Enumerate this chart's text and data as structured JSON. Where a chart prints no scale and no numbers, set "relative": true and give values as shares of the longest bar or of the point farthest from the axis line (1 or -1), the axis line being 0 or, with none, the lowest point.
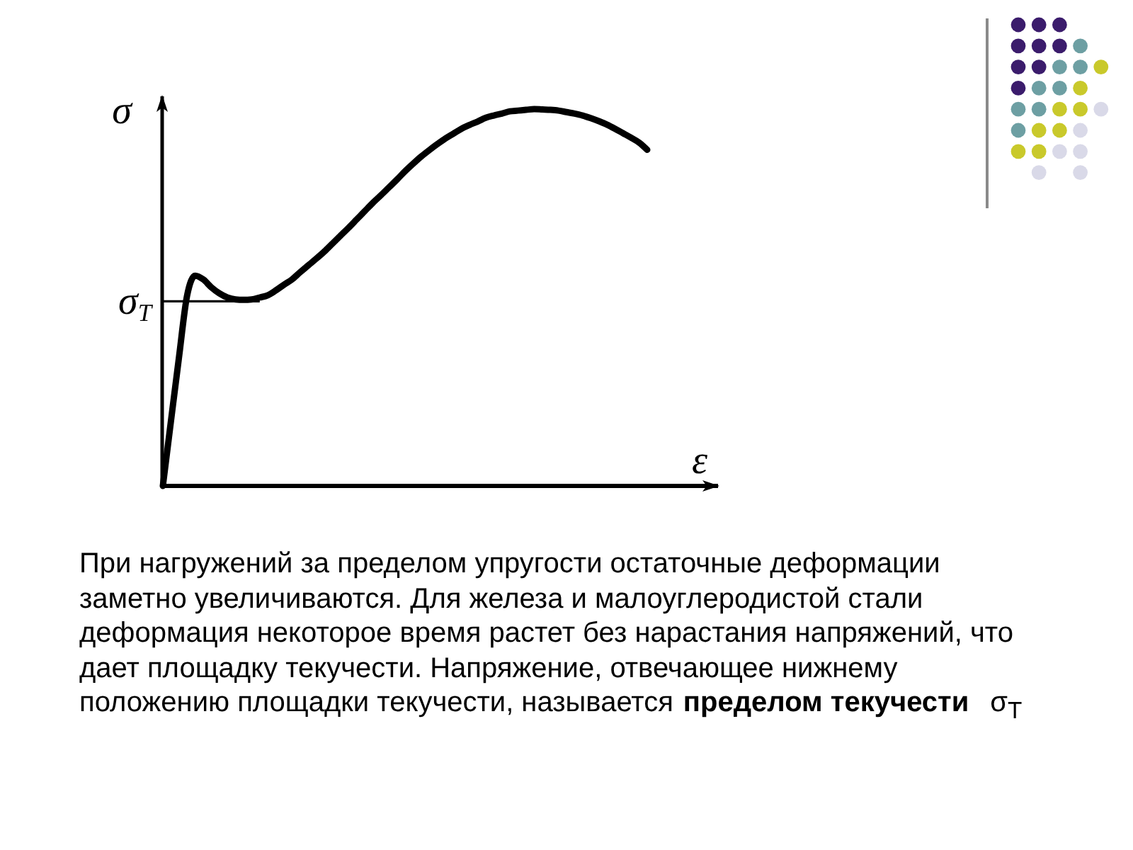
{
  "chart_data": {
    "type": "line",
    "relative": true,
    "xlabel": "ε",
    "ylabel": "σ",
    "categories": [
      null,
      null,
      null,
      null,
      null,
      null,
      null,
      null,
      null,
      null,
      null,
      null,
      null,
      null,
      null,
      null,
      null,
      null,
      null,
      null,
      null,
      null,
      null,
      null,
      null,
      null,
      null,
      null,
      null,
      null,
      null,
      null,
      null,
      null,
      null,
      null,
      null,
      null,
      null,
      null,
      null,
      null,
      null,
      null,
      null,
      null,
      null,
      null,
      null,
      null,
      null,
      null,
      null,
      null,
      null,
      null,
      null,
      null,
      null,
      null,
      null
    ],
    "series": [
      {
        "color": "#000000",
        "values": [
          0,
          0.172,
          0.342,
          0.505,
          0.558,
          0.548,
          0.527,
          0.511,
          0.5,
          0.495,
          0.494,
          0.495,
          0.5,
          0.506,
          0.519,
          0.534,
          0.548,
          0.567,
          0.585,
          0.603,
          0.622,
          0.643,
          0.664,
          0.685,
          0.707,
          0.729,
          0.751,
          0.771,
          0.792,
          0.813,
          0.835,
          0.855,
          0.874,
          0.891,
          0.907,
          0.922,
          0.935,
          0.948,
          0.958,
          0.967,
          0.977,
          0.983,
          0.988,
          0.994,
          0.996,
          0.998,
          1,
          0.999,
          0.998,
          0.996,
          0.992,
          0.988,
          0.983,
          0.976,
          0.968,
          0.959,
          0.948,
          0.936,
          0.924,
          0.911,
          0.892
        ]
      }
    ],
    "ref_lines": [
      {
        "axis": "y",
        "value": 0.49,
        "label": "σ$_{T}$"
      }
    ],
    "annotations": [
      "При нагружений за пределом упругости остаточные деформации",
      "заметно увеличиваются. Для железа и малоуглеродистой стали",
      "деформация некоторое время растет без нарастания напряжений, что",
      "дает площадку текучести. Напряжение, отвечающее нижнему",
      "положению площадки текучести, называется",
      "пределом текучести",
      "σ$_{T}$"
    ]
  }
}
